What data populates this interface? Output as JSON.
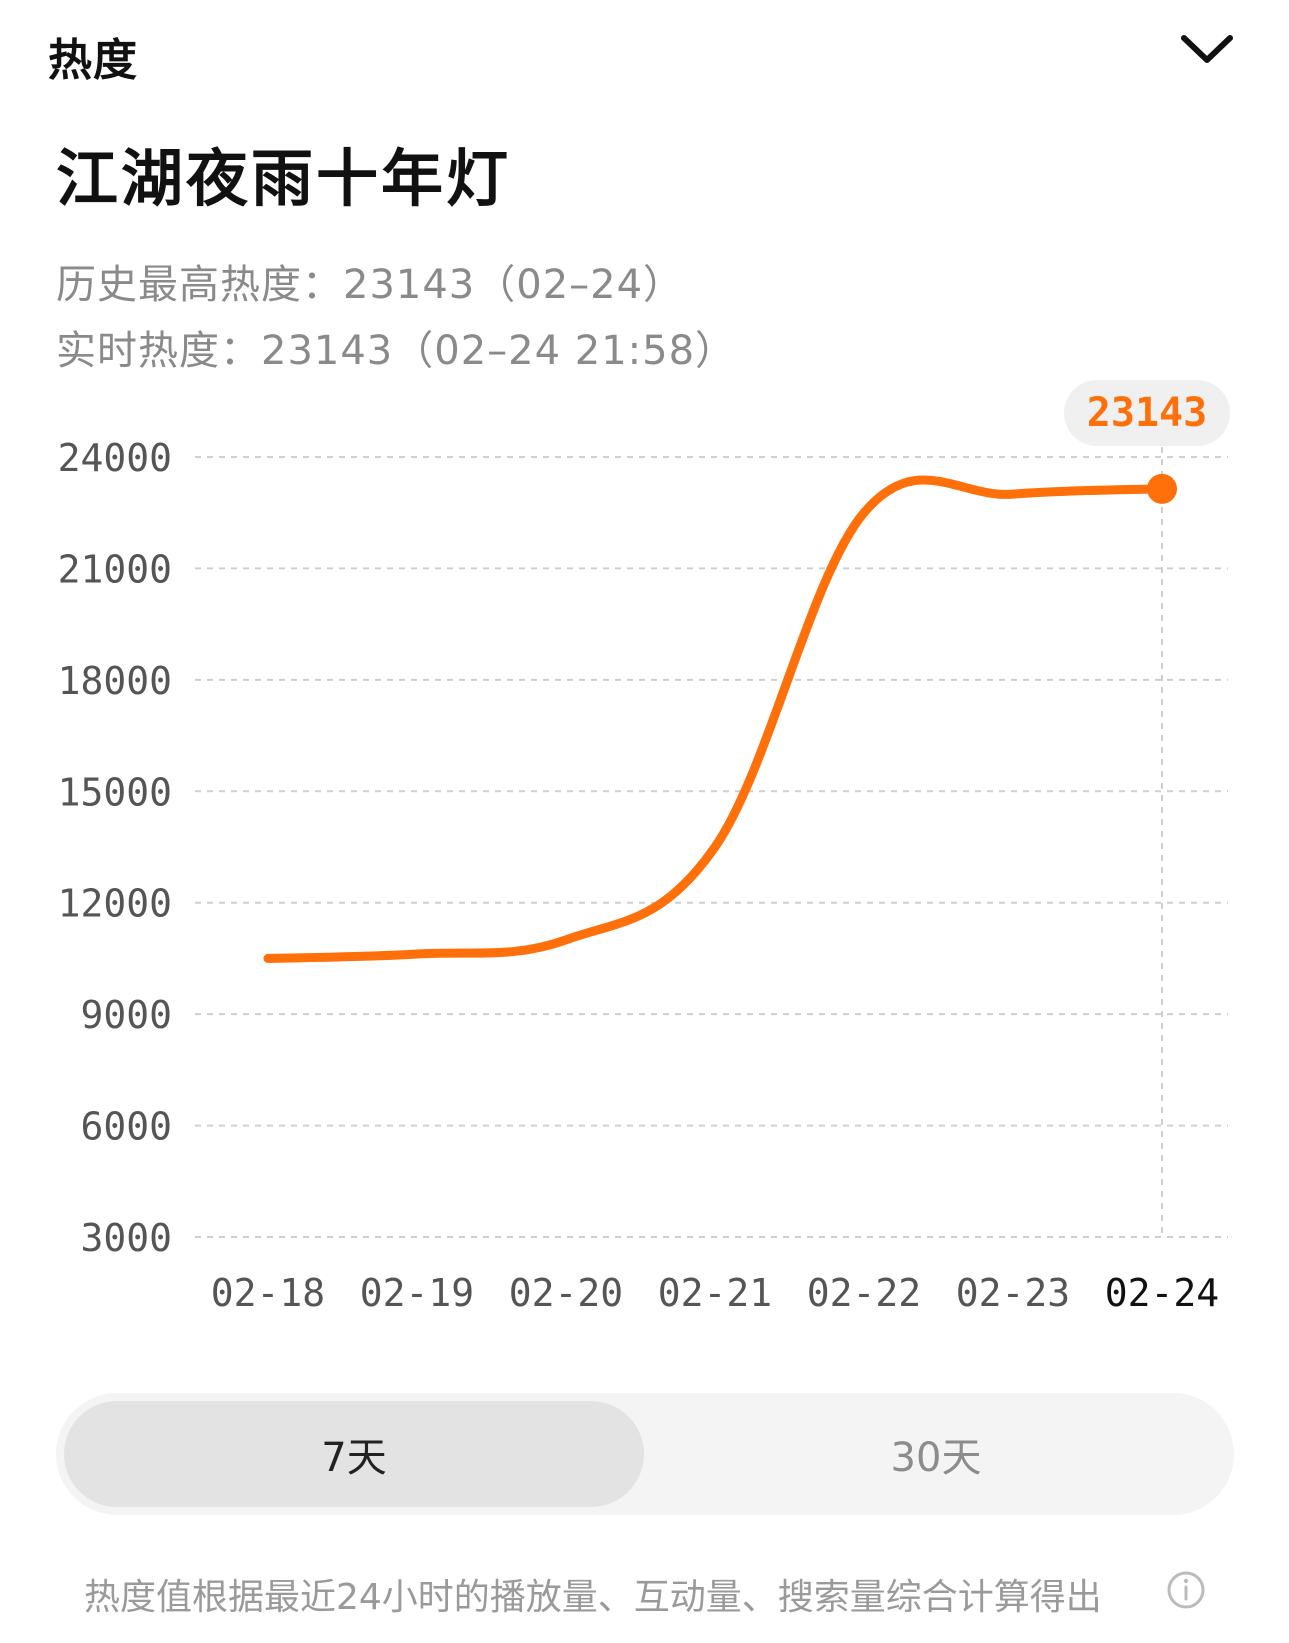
{
  "header": {
    "label": "热度"
  },
  "topic": {
    "title": "江湖夜雨十年灯"
  },
  "stats": {
    "peak_label": "历史最高热度：",
    "peak_value": "23143（02–24）",
    "realtime_label": "实时热度：",
    "realtime_value": "23143（02–24 21:58）"
  },
  "chart_data": {
    "type": "line",
    "x": [
      "02-18",
      "02-19",
      "02-20",
      "02-21",
      "02-22",
      "02-23",
      "02-24"
    ],
    "series": [
      {
        "values": [
          10500,
          10620,
          11000,
          13500,
          22500,
          23000,
          23143
        ]
      }
    ],
    "y_ticks": [
      "24000",
      "21000",
      "18000",
      "15000",
      "12000",
      "9000",
      "6000",
      "3000"
    ],
    "ylim": [
      3000,
      24000
    ],
    "grid": true,
    "highlight": {
      "x": "02-24",
      "value": "23143"
    },
    "line_color": "#ff6f0a",
    "bubble_color": "#f0f0f0"
  },
  "tabs": {
    "seven_day": "7天",
    "thirty_day": "30天"
  },
  "footnote": {
    "text": "热度值根据最近24小时的播放量、互动量、搜索量综合计算得出"
  },
  "icons": {
    "collapse": "chevron-down-icon",
    "info": "info-icon"
  }
}
